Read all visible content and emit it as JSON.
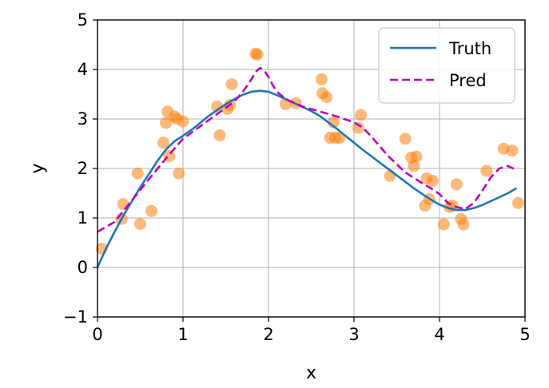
{
  "chart_data": {
    "type": "scatter",
    "xlabel": "x",
    "ylabel": "y",
    "xlim": [
      0,
      5
    ],
    "ylim": [
      -1,
      5
    ],
    "xticks": [
      "0",
      "1",
      "2",
      "3",
      "4",
      "5"
    ],
    "yticks": [
      "−1",
      "0",
      "1",
      "2",
      "3",
      "4",
      "5"
    ],
    "grid": true,
    "legend_position": "top-right",
    "series": [
      {
        "name": "Truth",
        "kind": "line",
        "style": "solid",
        "color": "#1f77b4",
        "x": [
          0,
          0.1,
          0.2,
          0.3,
          0.4,
          0.5,
          0.6,
          0.7,
          0.8,
          0.9,
          1.0,
          1.1,
          1.2,
          1.3,
          1.4,
          1.5,
          1.6,
          1.7,
          1.8,
          1.9,
          2.0,
          2.1,
          2.2,
          2.3,
          2.4,
          2.5,
          2.6,
          2.7,
          2.8,
          2.9,
          3.0,
          3.1,
          3.2,
          3.3,
          3.4,
          3.5,
          3.6,
          3.7,
          3.8,
          3.9,
          4.0,
          4.1,
          4.2,
          4.3,
          4.4,
          4.5,
          4.6,
          4.7,
          4.8,
          4.9
        ],
        "y": [
          0.0,
          0.38,
          0.72,
          1.04,
          1.33,
          1.62,
          1.88,
          2.15,
          2.38,
          2.55,
          2.66,
          2.78,
          2.92,
          3.06,
          3.18,
          3.3,
          3.4,
          3.49,
          3.55,
          3.57,
          3.55,
          3.48,
          3.4,
          3.32,
          3.24,
          3.16,
          3.06,
          2.93,
          2.8,
          2.66,
          2.52,
          2.38,
          2.25,
          2.12,
          1.99,
          1.86,
          1.73,
          1.6,
          1.48,
          1.37,
          1.27,
          1.2,
          1.16,
          1.16,
          1.2,
          1.26,
          1.34,
          1.42,
          1.5,
          1.6
        ]
      },
      {
        "name": "Pred",
        "kind": "line",
        "style": "dashed",
        "color": "#bf00bf",
        "x": [
          0,
          0.2,
          0.4,
          0.6,
          0.8,
          1.0,
          1.2,
          1.4,
          1.6,
          1.7,
          1.8,
          1.85,
          1.9,
          1.95,
          2.0,
          2.05,
          2.1,
          2.2,
          2.4,
          2.6,
          2.8,
          3.0,
          3.1,
          3.2,
          3.4,
          3.6,
          3.8,
          3.9,
          4.0,
          4.1,
          4.2,
          4.3,
          4.4,
          4.5,
          4.6,
          4.7,
          4.8,
          4.9
        ],
        "y": [
          0.72,
          0.92,
          1.35,
          1.78,
          2.2,
          2.6,
          2.85,
          3.1,
          3.35,
          3.55,
          3.8,
          3.95,
          4.03,
          3.98,
          3.85,
          3.68,
          3.55,
          3.4,
          3.25,
          3.15,
          3.05,
          2.93,
          2.83,
          2.65,
          2.25,
          1.92,
          1.7,
          1.6,
          1.48,
          1.3,
          1.22,
          1.18,
          1.3,
          1.55,
          1.82,
          2.0,
          2.05,
          1.97
        ]
      },
      {
        "name": "",
        "kind": "points",
        "color": "#ff7f0e",
        "x": [
          0.05,
          0.28,
          0.3,
          0.47,
          0.5,
          0.63,
          0.77,
          0.8,
          0.82,
          0.84,
          0.9,
          0.93,
          0.95,
          1.0,
          1.4,
          1.43,
          1.52,
          1.55,
          1.57,
          1.85,
          1.87,
          2.2,
          2.32,
          2.62,
          2.63,
          2.68,
          2.72,
          2.76,
          2.78,
          2.83,
          3.05,
          3.08,
          3.42,
          3.6,
          3.67,
          3.7,
          3.73,
          3.83,
          3.85,
          3.88,
          3.92,
          4.05,
          4.12,
          4.15,
          4.2,
          4.25,
          4.28,
          4.55,
          4.75,
          4.85,
          4.92
        ],
        "y": [
          0.38,
          0.98,
          1.28,
          1.9,
          0.88,
          1.14,
          2.52,
          2.92,
          3.15,
          2.25,
          3.05,
          3.0,
          1.9,
          2.95,
          3.25,
          2.67,
          3.2,
          3.28,
          3.7,
          4.32,
          4.3,
          3.3,
          3.32,
          3.8,
          3.52,
          3.44,
          2.62,
          2.93,
          2.62,
          2.62,
          2.82,
          3.08,
          1.85,
          2.6,
          2.22,
          2.05,
          2.24,
          1.25,
          1.8,
          1.38,
          1.75,
          0.87,
          1.22,
          1.25,
          1.68,
          0.98,
          0.87,
          1.95,
          2.4,
          2.36,
          1.3
        ]
      }
    ]
  }
}
